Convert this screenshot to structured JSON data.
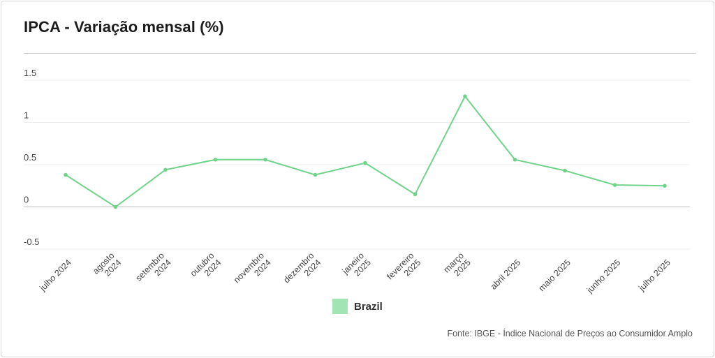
{
  "chart_data": {
    "type": "line",
    "title": "IPCA - Variação mensal (%)",
    "xlabel": "",
    "ylabel": "",
    "categories": [
      [
        "julho 2024"
      ],
      [
        "agosto",
        "2024"
      ],
      [
        "setembro",
        "2024"
      ],
      [
        "outubro",
        "2024"
      ],
      [
        "novembro",
        "2024"
      ],
      [
        "dezembro",
        "2024"
      ],
      [
        "janeiro",
        "2025"
      ],
      [
        "fevereiro",
        "2025"
      ],
      [
        "março",
        "2025"
      ],
      [
        "abril 2025"
      ],
      [
        "maio 2025"
      ],
      [
        "junho 2025"
      ],
      [
        "julho 2025"
      ]
    ],
    "series": [
      {
        "name": "Brazil",
        "color": "#6fd38a",
        "values": [
          0.38,
          0.0,
          0.44,
          0.56,
          0.56,
          0.38,
          0.52,
          0.15,
          1.31,
          0.56,
          0.43,
          0.26,
          0.25
        ]
      }
    ],
    "yticks": [
      -0.5,
      0,
      0.5,
      1,
      1.5
    ],
    "ytick_labels": [
      "-0.5",
      "0",
      "0.5",
      "1",
      "1.5"
    ],
    "ylim": [
      -0.5,
      1.5
    ],
    "grid": true,
    "legend": "bottom-center",
    "source": "Fonte: IBGE - Índice Nacional de Preços ao Consumidor Amplo"
  }
}
